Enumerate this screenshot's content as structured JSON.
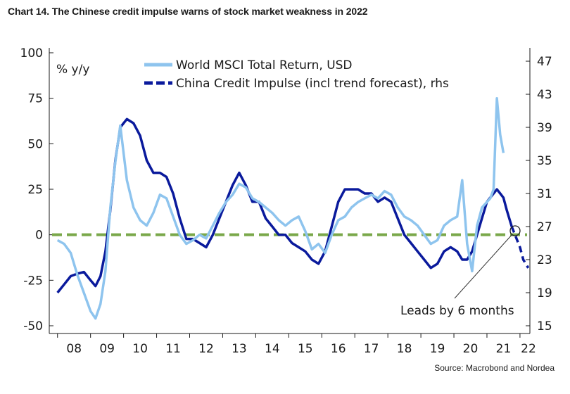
{
  "title": "Chart 14. The Chinese credit impulse warns of stock market weakness in 2022",
  "source": "Source: Macrobond and Nordea",
  "colors": {
    "msci": "#8ec4ee",
    "credit": "#0a1a9c",
    "zero": "#7aa84a",
    "axis": "#1a1a1a"
  },
  "chart_data": {
    "type": "line",
    "title": "Chart 14. The Chinese credit impulse warns of stock market weakness in 2022",
    "ylabel_left": "% y/y",
    "left_ticks": [
      "100",
      "75",
      "50",
      "25",
      "0",
      "-25",
      "-50"
    ],
    "left_ylim": [
      -50,
      100
    ],
    "right_ticks": [
      "47",
      "43",
      "39",
      "35",
      "31",
      "27",
      "23",
      "19",
      "15"
    ],
    "right_ylim": [
      15,
      47
    ],
    "x_ticks": [
      "08",
      "09",
      "10",
      "11",
      "12",
      "13",
      "14",
      "15",
      "16",
      "17",
      "18",
      "19",
      "20",
      "21",
      "22"
    ],
    "xlim": [
      2007.75,
      2022.3
    ],
    "annotation": "Leads by 6 months",
    "annotation_point": {
      "x": 2021.75,
      "left_value": 0
    },
    "reference_line": {
      "value": 0,
      "style": "dashed"
    },
    "series": [
      {
        "name": "World MSCI Total Return, USD",
        "axis": "left",
        "x": [
          2008.0,
          2008.2,
          2008.4,
          2008.6,
          2008.8,
          2009.0,
          2009.15,
          2009.3,
          2009.45,
          2009.6,
          2009.75,
          2009.9,
          2010.1,
          2010.3,
          2010.5,
          2010.7,
          2010.9,
          2011.1,
          2011.3,
          2011.5,
          2011.7,
          2011.9,
          2012.1,
          2012.3,
          2012.5,
          2012.7,
          2012.9,
          2013.1,
          2013.3,
          2013.5,
          2013.7,
          2013.9,
          2014.1,
          2014.3,
          2014.5,
          2014.7,
          2014.9,
          2015.1,
          2015.3,
          2015.5,
          2015.7,
          2015.9,
          2016.1,
          2016.3,
          2016.5,
          2016.7,
          2016.9,
          2017.1,
          2017.3,
          2017.5,
          2017.7,
          2017.9,
          2018.1,
          2018.3,
          2018.5,
          2018.7,
          2018.9,
          2019.1,
          2019.3,
          2019.5,
          2019.7,
          2019.9,
          2020.1,
          2020.25,
          2020.4,
          2020.55,
          2020.7,
          2020.85,
          2021.0,
          2021.1,
          2021.2,
          2021.3,
          2021.4,
          2021.5
        ],
        "values": [
          -3,
          -5,
          -10,
          -22,
          -32,
          -42,
          -46,
          -38,
          -20,
          15,
          40,
          60,
          30,
          15,
          8,
          5,
          12,
          22,
          20,
          10,
          0,
          -5,
          -3,
          0,
          -2,
          5,
          12,
          18,
          22,
          28,
          26,
          20,
          18,
          15,
          12,
          8,
          5,
          8,
          10,
          2,
          -8,
          -5,
          -10,
          0,
          8,
          10,
          15,
          18,
          20,
          22,
          20,
          24,
          22,
          15,
          10,
          8,
          5,
          0,
          -5,
          -3,
          5,
          8,
          10,
          30,
          -5,
          -20,
          5,
          15,
          18,
          20,
          25,
          75,
          55,
          45
        ]
      },
      {
        "name": "China Credit Impulse (incl trend forecast), rhs",
        "axis": "right",
        "x": [
          2008.0,
          2008.2,
          2008.4,
          2008.6,
          2008.8,
          2009.0,
          2009.15,
          2009.3,
          2009.45,
          2009.6,
          2009.75,
          2009.9,
          2010.1,
          2010.3,
          2010.5,
          2010.7,
          2010.9,
          2011.1,
          2011.3,
          2011.5,
          2011.7,
          2011.9,
          2012.1,
          2012.3,
          2012.5,
          2012.7,
          2012.9,
          2013.1,
          2013.3,
          2013.5,
          2013.7,
          2013.9,
          2014.1,
          2014.3,
          2014.5,
          2014.7,
          2014.9,
          2015.1,
          2015.3,
          2015.5,
          2015.7,
          2015.9,
          2016.1,
          2016.3,
          2016.5,
          2016.7,
          2016.9,
          2017.1,
          2017.3,
          2017.5,
          2017.7,
          2017.9,
          2018.1,
          2018.3,
          2018.5,
          2018.7,
          2018.9,
          2019.1,
          2019.3,
          2019.5,
          2019.7,
          2019.9,
          2020.1,
          2020.25,
          2020.4,
          2020.55,
          2020.7,
          2020.85,
          2021.0,
          2021.1,
          2021.2,
          2021.3,
          2021.4,
          2021.5,
          2021.6,
          2021.75
        ],
        "values": [
          19,
          20,
          21,
          21.3,
          21.5,
          20.5,
          19.8,
          21,
          24,
          29,
          35,
          39,
          40,
          39.5,
          38,
          35,
          33.5,
          33.5,
          33,
          31,
          28,
          25.5,
          25.5,
          25,
          24.5,
          26,
          28,
          30,
          32,
          33.5,
          32,
          30,
          30,
          28,
          27,
          26,
          26,
          25,
          24.5,
          24,
          23,
          22.5,
          24,
          27,
          30,
          31.5,
          31.5,
          31.5,
          31,
          31,
          30,
          30.5,
          30,
          28,
          26,
          25,
          24,
          23,
          22,
          22.5,
          24,
          24.5,
          24,
          23,
          23,
          24,
          26,
          28,
          30,
          30.5,
          31,
          31.5,
          31,
          30.5,
          29,
          27
        ],
        "forecast_x": [
          2021.75,
          2021.9,
          2022.0,
          2022.1,
          2022.25
        ],
        "forecast_values": [
          27,
          25.5,
          24.5,
          23,
          22
        ]
      }
    ]
  }
}
